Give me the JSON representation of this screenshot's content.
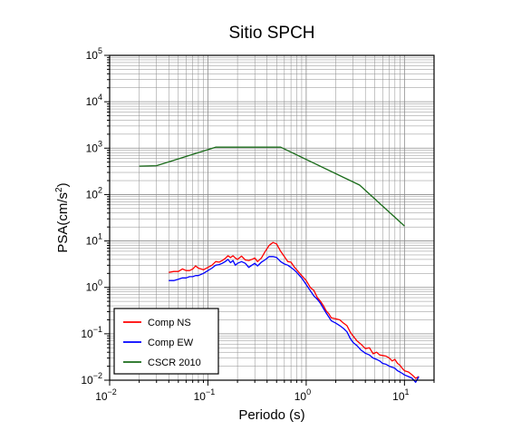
{
  "chart_data": {
    "type": "line",
    "title": "Sitio SPCH",
    "xlabel": "Periodo (s)",
    "ylabel_text": "PSA(cm/s",
    "ylabel_sup": "2",
    "ylabel_close": ")",
    "xscale": "log",
    "yscale": "log",
    "xlim": [
      0.01,
      20
    ],
    "ylim": [
      0.01,
      100000
    ],
    "grid": true,
    "legend_position": "bottom-left",
    "x_ticks": [
      {
        "value": 0.01,
        "base": "10",
        "exp": "−2"
      },
      {
        "value": 0.1,
        "base": "10",
        "exp": "−1"
      },
      {
        "value": 1,
        "base": "10",
        "exp": "0"
      },
      {
        "value": 10,
        "base": "10",
        "exp": "1"
      }
    ],
    "y_ticks": [
      {
        "value": 0.01,
        "base": "10",
        "exp": "−2"
      },
      {
        "value": 0.1,
        "base": "10",
        "exp": "−1"
      },
      {
        "value": 1,
        "base": "10",
        "exp": "0"
      },
      {
        "value": 10,
        "base": "10",
        "exp": "1"
      },
      {
        "value": 100,
        "base": "10",
        "exp": "2"
      },
      {
        "value": 1000,
        "base": "10",
        "exp": "3"
      },
      {
        "value": 10000,
        "base": "10",
        "exp": "4"
      },
      {
        "value": 100000,
        "base": "10",
        "exp": "5"
      }
    ],
    "series": [
      {
        "name": "Comp NS",
        "color": "#ff0000",
        "x": [
          0.04,
          0.045,
          0.05,
          0.055,
          0.06,
          0.065,
          0.07,
          0.075,
          0.08,
          0.09,
          0.1,
          0.11,
          0.12,
          0.13,
          0.14,
          0.15,
          0.16,
          0.17,
          0.18,
          0.19,
          0.2,
          0.22,
          0.24,
          0.26,
          0.28,
          0.3,
          0.32,
          0.35,
          0.38,
          0.42,
          0.46,
          0.5,
          0.55,
          0.6,
          0.65,
          0.7,
          0.75,
          0.8,
          0.9,
          1.0,
          1.1,
          1.2,
          1.3,
          1.4,
          1.5,
          1.6,
          1.7,
          1.8,
          2.0,
          2.2,
          2.4,
          2.6,
          2.8,
          3.0,
          3.3,
          3.6,
          4.0,
          4.4,
          4.8,
          5.2,
          5.6,
          6.0,
          6.5,
          7.0,
          7.5,
          8.0,
          8.5,
          9.0,
          9.5,
          10.0,
          11.0,
          12.0,
          13.0,
          14.0
        ],
        "y": [
          2.1,
          2.2,
          2.2,
          2.5,
          2.3,
          2.3,
          2.5,
          2.9,
          2.6,
          2.4,
          2.7,
          3.0,
          3.6,
          3.5,
          3.8,
          4.2,
          4.8,
          4.4,
          4.8,
          4.3,
          4.0,
          4.7,
          3.9,
          3.8,
          4.0,
          4.3,
          3.6,
          4.3,
          5.8,
          8.0,
          9.3,
          8.6,
          6.0,
          4.6,
          3.6,
          3.5,
          2.8,
          2.4,
          1.8,
          1.4,
          1.0,
          0.85,
          0.6,
          0.5,
          0.4,
          0.31,
          0.27,
          0.22,
          0.21,
          0.2,
          0.17,
          0.15,
          0.11,
          0.09,
          0.07,
          0.06,
          0.048,
          0.05,
          0.037,
          0.04,
          0.035,
          0.034,
          0.033,
          0.03,
          0.026,
          0.028,
          0.023,
          0.021,
          0.018,
          0.016,
          0.015,
          0.013,
          0.011,
          0.012
        ]
      },
      {
        "name": "Comp EW",
        "color": "#0000ff",
        "x": [
          0.04,
          0.045,
          0.05,
          0.055,
          0.06,
          0.065,
          0.07,
          0.075,
          0.08,
          0.09,
          0.1,
          0.11,
          0.12,
          0.13,
          0.14,
          0.15,
          0.16,
          0.17,
          0.18,
          0.19,
          0.2,
          0.22,
          0.24,
          0.26,
          0.28,
          0.3,
          0.32,
          0.35,
          0.38,
          0.42,
          0.46,
          0.5,
          0.55,
          0.6,
          0.65,
          0.7,
          0.75,
          0.8,
          0.9,
          1.0,
          1.1,
          1.2,
          1.3,
          1.4,
          1.5,
          1.6,
          1.7,
          1.8,
          2.0,
          2.2,
          2.4,
          2.6,
          2.8,
          3.0,
          3.3,
          3.6,
          4.0,
          4.4,
          4.8,
          5.2,
          5.6,
          6.0,
          6.5,
          7.0,
          7.5,
          8.0,
          8.5,
          9.0,
          9.5,
          10.0,
          11.0,
          12.0,
          13.0,
          14.0
        ],
        "y": [
          1.4,
          1.4,
          1.5,
          1.6,
          1.6,
          1.7,
          1.7,
          1.8,
          1.8,
          2.0,
          2.3,
          2.6,
          3.0,
          3.1,
          3.3,
          3.6,
          4.0,
          3.4,
          3.8,
          3.0,
          3.3,
          3.6,
          3.3,
          2.7,
          3.0,
          3.3,
          2.9,
          3.5,
          3.9,
          4.6,
          4.6,
          4.4,
          3.6,
          3.2,
          3.0,
          2.7,
          2.4,
          2.1,
          1.6,
          1.15,
          0.85,
          0.65,
          0.55,
          0.45,
          0.35,
          0.28,
          0.23,
          0.19,
          0.17,
          0.15,
          0.13,
          0.11,
          0.08,
          0.065,
          0.055,
          0.045,
          0.038,
          0.035,
          0.03,
          0.028,
          0.026,
          0.023,
          0.022,
          0.02,
          0.019,
          0.018,
          0.016,
          0.015,
          0.014,
          0.013,
          0.012,
          0.011,
          0.009,
          0.012
        ]
      },
      {
        "name": "CSCR 2010",
        "color": "#1a6b1a",
        "x": [
          0.02,
          0.03,
          0.12,
          0.55,
          3.5,
          10.0
        ],
        "y": [
          410,
          420,
          1050,
          1050,
          160,
          21
        ]
      }
    ]
  }
}
